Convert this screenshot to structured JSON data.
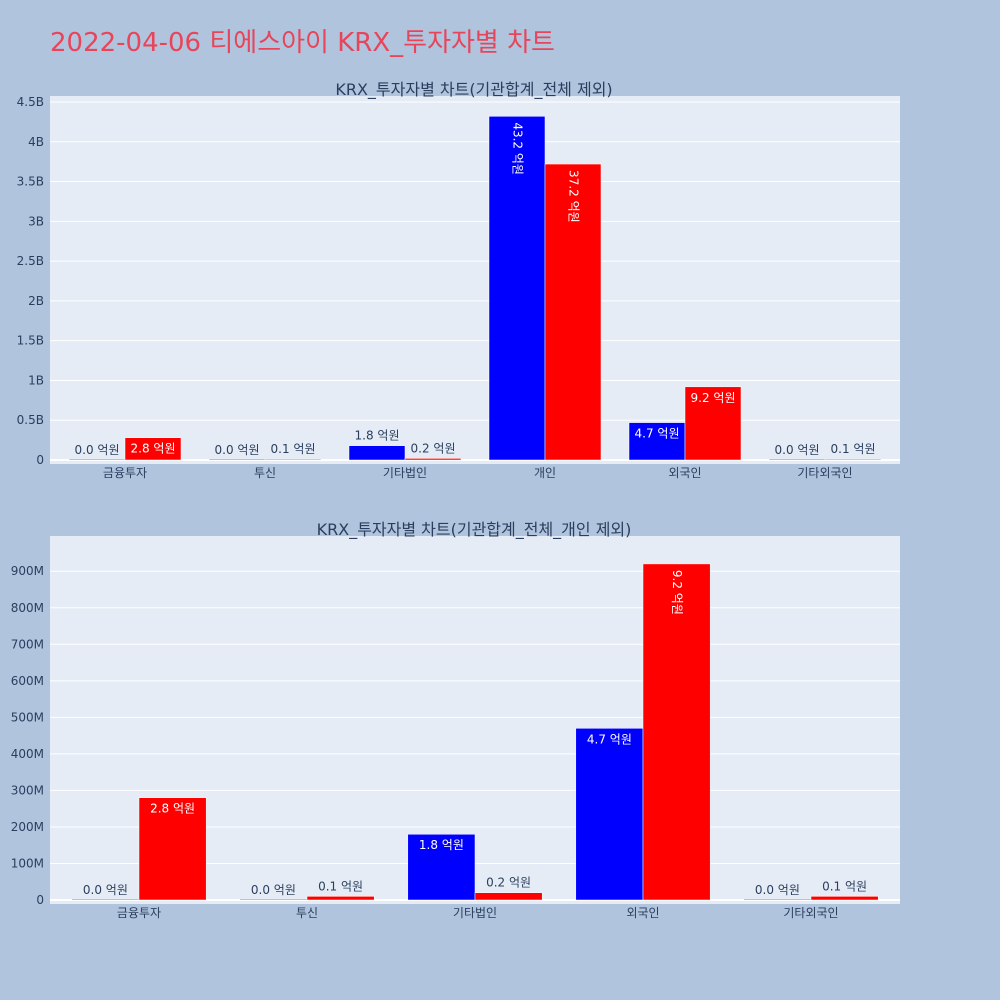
{
  "page": {
    "title": "2022-04-06 티에스아이 KRX_투자자별 차트"
  },
  "colors": {
    "buy": "#0000ff",
    "sell": "#ff0000",
    "plot_bg": "#e5ecf6",
    "page_bg": "#b0c4de",
    "title": "#e8455a",
    "text": "#2a3f5f"
  },
  "chart_data": [
    {
      "type": "bar",
      "title": "KRX_투자자별 차트(기관합계_전체 제외)",
      "categories": [
        "금융투자",
        "투신",
        "기타법인",
        "개인",
        "외국인",
        "기타외국인"
      ],
      "series": [
        {
          "values": [
            0,
            0,
            180000000,
            4320000000,
            470000000,
            0
          ],
          "labels": [
            "0.0 억원",
            "0.0 억원",
            "1.8 억원",
            "43.2 억원",
            "4.7 억원",
            "0.0 억원"
          ]
        },
        {
          "values": [
            280000000,
            10000000,
            20000000,
            3720000000,
            920000000,
            10000000
          ],
          "labels": [
            "2.8 억원",
            "0.1 억원",
            "0.2 억원",
            "37.2 억원",
            "9.2 억원",
            "0.1 억원"
          ]
        }
      ],
      "ylim": [
        0,
        4500000000
      ],
      "yticks": [
        {
          "v": 0,
          "label": "0"
        },
        {
          "v": 500000000,
          "label": "0.5B"
        },
        {
          "v": 1000000000,
          "label": "1B"
        },
        {
          "v": 1500000000,
          "label": "1.5B"
        },
        {
          "v": 2000000000,
          "label": "2B"
        },
        {
          "v": 2500000000,
          "label": "2.5B"
        },
        {
          "v": 3000000000,
          "label": "3B"
        },
        {
          "v": 3500000000,
          "label": "3.5B"
        },
        {
          "v": 4000000000,
          "label": "4B"
        },
        {
          "v": 4500000000,
          "label": "4.5B"
        }
      ],
      "grid": true,
      "legend": "none"
    },
    {
      "type": "bar",
      "title": "KRX_투자자별 차트(기관합계_전체_개인 제외)",
      "categories": [
        "금융투자",
        "투신",
        "기타법인",
        "외국인",
        "기타외국인"
      ],
      "series": [
        {
          "values": [
            0,
            0,
            180000000,
            470000000,
            0
          ],
          "labels": [
            "0.0 억원",
            "0.0 억원",
            "1.8 억원",
            "4.7 억원",
            "0.0 억원"
          ]
        },
        {
          "values": [
            280000000,
            10000000,
            20000000,
            920000000,
            10000000
          ],
          "labels": [
            "2.8 억원",
            "0.1 억원",
            "0.2 억원",
            "9.2 억원",
            "0.1 억원"
          ]
        }
      ],
      "ylim": [
        0,
        980000000
      ],
      "yticks": [
        {
          "v": 0,
          "label": "0"
        },
        {
          "v": 100000000,
          "label": "100M"
        },
        {
          "v": 200000000,
          "label": "200M"
        },
        {
          "v": 300000000,
          "label": "300M"
        },
        {
          "v": 400000000,
          "label": "400M"
        },
        {
          "v": 500000000,
          "label": "500M"
        },
        {
          "v": 600000000,
          "label": "600M"
        },
        {
          "v": 700000000,
          "label": "700M"
        },
        {
          "v": 800000000,
          "label": "800M"
        },
        {
          "v": 900000000,
          "label": "900M"
        }
      ],
      "grid": true,
      "legend": "none"
    }
  ]
}
